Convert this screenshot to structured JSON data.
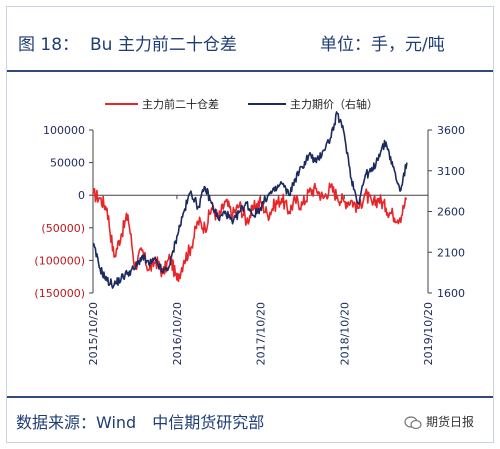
{
  "header": {
    "figure_label": "图 18：",
    "title": "Bu 主力前二十仓差",
    "unit": "单位：手，元/吨"
  },
  "footer": {
    "source": "数据来源：Wind　中信期货研究部",
    "badge": "期货日报",
    "badge_icon": "wechat-icon"
  },
  "colors": {
    "left_series": "#e8262a",
    "right_series": "#1c2a5e",
    "header_text": "#1f3d74",
    "rule": "#2f4a7c"
  },
  "chart_data": {
    "type": "line",
    "legend_position": "top",
    "grid": false,
    "x_ticks": [
      "2015/10/20",
      "2016/10/20",
      "2017/10/20",
      "2018/10/20",
      "2019/10/20"
    ],
    "x_range": [
      "2015/10/20",
      "2019/10/20"
    ],
    "y_left": {
      "ylim": [
        -150000,
        100000
      ],
      "ticks": [
        100000,
        50000,
        0,
        -50000,
        -100000,
        -150000
      ],
      "tick_labels": [
        "100000",
        "50000",
        "0",
        "(50000)",
        "(100000)",
        "(150000)"
      ]
    },
    "y_right": {
      "ylim": [
        1600,
        3600
      ],
      "ticks": [
        3600,
        3100,
        2600,
        2100,
        1600
      ],
      "tick_labels": [
        "3600",
        "3100",
        "2600",
        "2100",
        "1600"
      ]
    },
    "series": [
      {
        "name": "主力前二十仓差",
        "axis": "left",
        "color": "#e8262a",
        "x": [
          "2015/10/20",
          "2015/11/20",
          "2015/12/20",
          "2016/01/20",
          "2016/02/20",
          "2016/03/20",
          "2016/04/20",
          "2016/05/20",
          "2016/06/20",
          "2016/07/20",
          "2016/08/20",
          "2016/09/20",
          "2016/10/20",
          "2016/11/20",
          "2016/12/20",
          "2017/01/20",
          "2017/02/20",
          "2017/03/20",
          "2017/04/20",
          "2017/05/20",
          "2017/06/20",
          "2017/07/20",
          "2017/08/20",
          "2017/09/20",
          "2017/10/20",
          "2017/11/20",
          "2017/12/20",
          "2018/01/20",
          "2018/02/20",
          "2018/03/20",
          "2018/04/20",
          "2018/05/20",
          "2018/06/20",
          "2018/07/20",
          "2018/08/20",
          "2018/09/20",
          "2018/10/20",
          "2018/11/20",
          "2018/12/20",
          "2019/01/20",
          "2019/02/20",
          "2019/03/20",
          "2019/04/20",
          "2019/05/20",
          "2019/06/20",
          "2019/07/20"
        ],
        "values": [
          2000,
          -5000,
          -20000,
          -95000,
          -60000,
          -30000,
          -110000,
          -85000,
          -115000,
          -100000,
          -120000,
          -95000,
          -130000,
          -100000,
          -80000,
          -40000,
          -50000,
          -20000,
          -35000,
          -10000,
          -30000,
          -15000,
          -40000,
          -20000,
          -10000,
          -30000,
          -15000,
          -5000,
          -25000,
          -8000,
          -15000,
          5000,
          10000,
          -5000,
          12000,
          -2000,
          -10000,
          -8000,
          -20000,
          2000,
          -15000,
          -5000,
          -20000,
          -30000,
          -35000,
          -5000
        ]
      },
      {
        "name": "主力期价（右轴）",
        "axis": "right",
        "color": "#1c2a5e",
        "x": [
          "2015/10/20",
          "2015/11/20",
          "2015/12/20",
          "2016/01/20",
          "2016/02/20",
          "2016/03/20",
          "2016/04/20",
          "2016/05/20",
          "2016/06/20",
          "2016/07/20",
          "2016/08/20",
          "2016/09/20",
          "2016/10/20",
          "2016/11/20",
          "2016/12/20",
          "2017/01/20",
          "2017/02/20",
          "2017/03/20",
          "2017/04/20",
          "2017/05/20",
          "2017/06/20",
          "2017/07/20",
          "2017/08/20",
          "2017/09/20",
          "2017/10/20",
          "2017/11/20",
          "2017/12/20",
          "2018/01/20",
          "2018/02/20",
          "2018/03/20",
          "2018/04/20",
          "2018/05/20",
          "2018/06/20",
          "2018/07/20",
          "2018/08/20",
          "2018/09/20",
          "2018/10/20",
          "2018/11/20",
          "2018/12/20",
          "2019/01/20",
          "2019/02/20",
          "2019/03/20",
          "2019/04/20",
          "2019/05/20",
          "2019/06/20",
          "2019/07/20"
        ],
        "values": [
          2200,
          1900,
          1750,
          1700,
          1780,
          1850,
          1900,
          2050,
          1950,
          2000,
          1850,
          1950,
          2300,
          2600,
          2850,
          2650,
          2900,
          2700,
          2500,
          2600,
          2450,
          2600,
          2700,
          2550,
          2650,
          2800,
          2850,
          2950,
          2800,
          3000,
          3150,
          3300,
          3200,
          3350,
          3500,
          3800,
          3550,
          3000,
          2700,
          3050,
          3100,
          3300,
          3450,
          3150,
          2850,
          3200
        ]
      }
    ]
  }
}
